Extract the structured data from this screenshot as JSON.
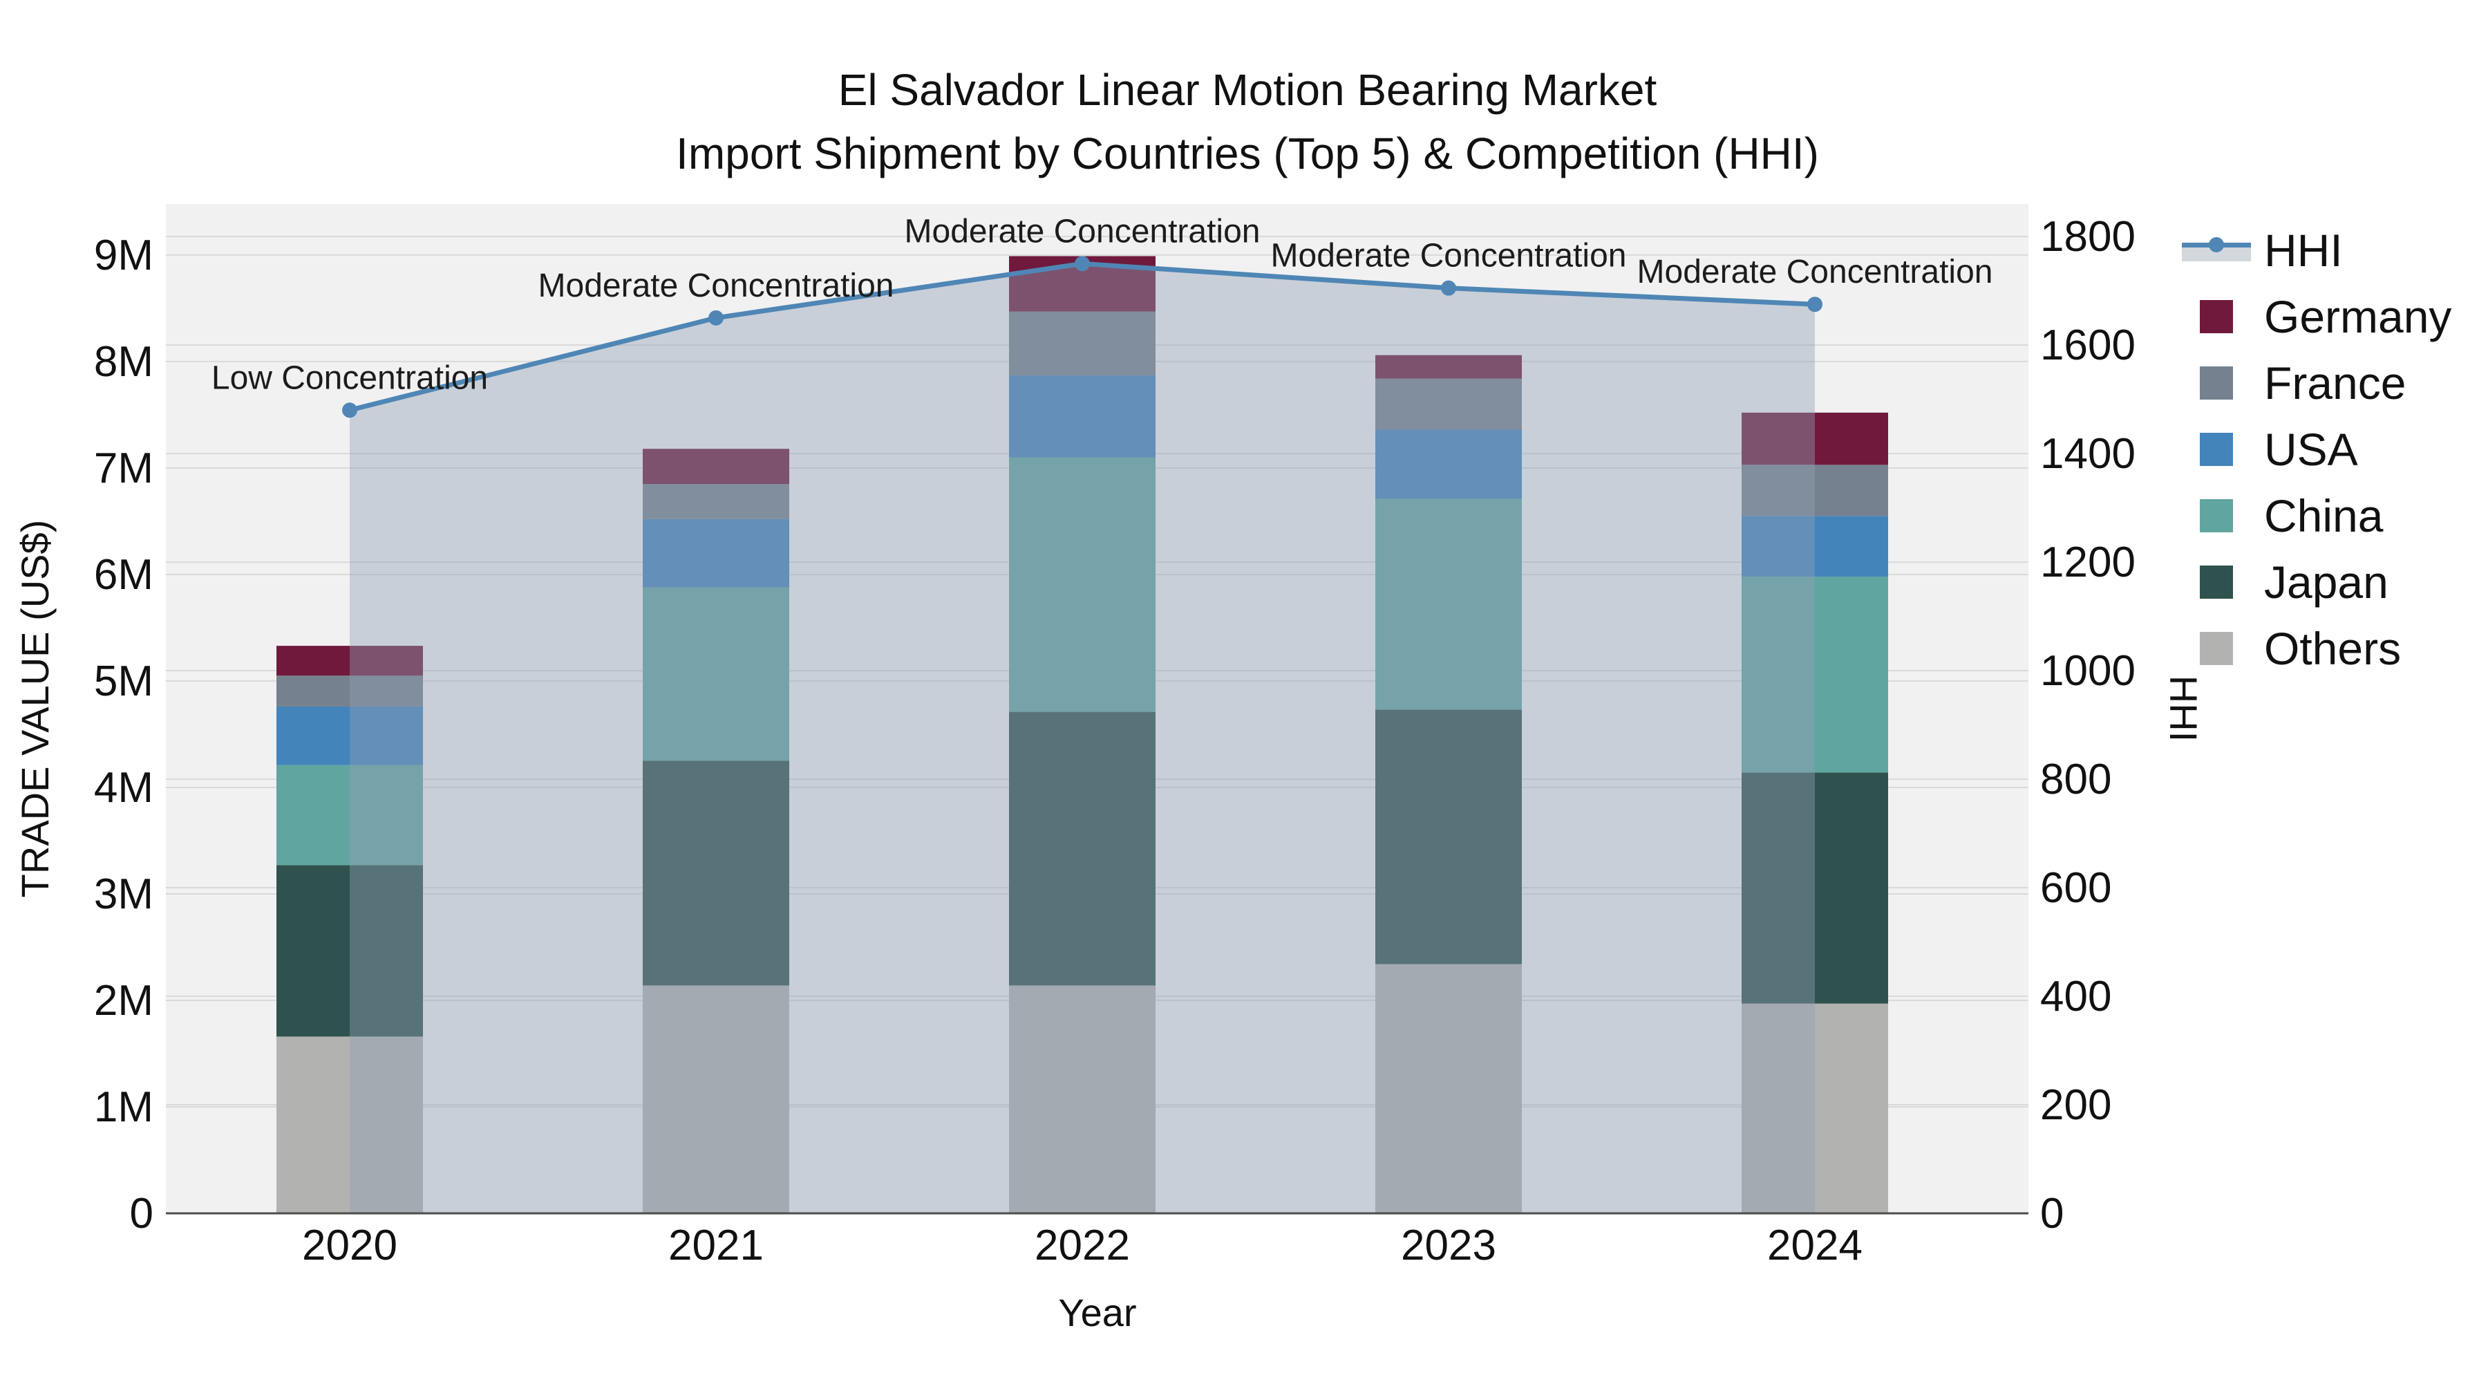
{
  "title": {
    "line1": "El Salvador Linear Motion Bearing Market",
    "line2": "Import Shipment by Countries (Top 5) & Competition (HHI)"
  },
  "chart_data": {
    "type": "bar+line",
    "title": "El Salvador Linear Motion Bearing Market — Import Shipment by Countries (Top 5) & Competition (HHI)",
    "categories": [
      "2020",
      "2021",
      "2022",
      "2023",
      "2024"
    ],
    "xlabel": "Year",
    "left_axis": {
      "label": "TRADE VALUE (US$)",
      "max": 9480000,
      "ticks": [
        {
          "v": 0,
          "label": "0"
        },
        {
          "v": 1000000,
          "label": "1M"
        },
        {
          "v": 2000000,
          "label": "2M"
        },
        {
          "v": 3000000,
          "label": "3M"
        },
        {
          "v": 4000000,
          "label": "4M"
        },
        {
          "v": 5000000,
          "label": "5M"
        },
        {
          "v": 6000000,
          "label": "6M"
        },
        {
          "v": 7000000,
          "label": "7M"
        },
        {
          "v": 8000000,
          "label": "8M"
        },
        {
          "v": 9000000,
          "label": "9M"
        }
      ]
    },
    "right_axis": {
      "label": "HHI",
      "max": 1860,
      "ticks": [
        {
          "v": 0,
          "label": "0"
        },
        {
          "v": 200,
          "label": "200"
        },
        {
          "v": 400,
          "label": "400"
        },
        {
          "v": 600,
          "label": "600"
        },
        {
          "v": 800,
          "label": "800"
        },
        {
          "v": 1000,
          "label": "1000"
        },
        {
          "v": 1200,
          "label": "1200"
        },
        {
          "v": 1400,
          "label": "1400"
        },
        {
          "v": 1600,
          "label": "1600"
        },
        {
          "v": 1800,
          "label": "1800"
        }
      ]
    },
    "series": [
      {
        "name": "Others",
        "color": "#b2b2b0",
        "values": [
          1660000,
          2140000,
          2140000,
          2340000,
          1970000
        ]
      },
      {
        "name": "Japan",
        "color": "#2f524e",
        "values": [
          1610000,
          2110000,
          2570000,
          2390000,
          2170000
        ]
      },
      {
        "name": "China",
        "color": "#61a5a0",
        "values": [
          940000,
          1630000,
          2390000,
          1980000,
          1840000
        ]
      },
      {
        "name": "USA",
        "color": "#4384ba",
        "values": [
          550000,
          640000,
          770000,
          650000,
          570000
        ]
      },
      {
        "name": "France",
        "color": "#75818e",
        "values": [
          290000,
          330000,
          600000,
          480000,
          480000
        ]
      },
      {
        "name": "Germany",
        "color": "#6f1a3c",
        "values": [
          280000,
          330000,
          520000,
          220000,
          490000
        ]
      }
    ],
    "bar_totals": [
      5330000,
      7180000,
      8990000,
      8060000,
      7520000
    ],
    "line": {
      "name": "HHI",
      "color": "#4f86b5",
      "values": [
        1480,
        1650,
        1750,
        1705,
        1675
      ]
    },
    "area_fill_color": "rgba(145,160,180,0.42)",
    "annotations": [
      {
        "year": "2020",
        "text": "Low Concentration"
      },
      {
        "year": "2021",
        "text": "Moderate Concentration"
      },
      {
        "year": "2022",
        "text": "Moderate Concentration"
      },
      {
        "year": "2023",
        "text": "Moderate Concentration"
      },
      {
        "year": "2024",
        "text": "Moderate Concentration"
      }
    ],
    "grid": true,
    "plot_bg": "#f1f1f2",
    "grid_color": "#d9d9d9",
    "legend_position": "right"
  },
  "legend": {
    "items": [
      {
        "label": "HHI",
        "type": "line",
        "color": "#4f86b5",
        "band_color": "#d3d7de"
      },
      {
        "label": "Germany",
        "type": "swatch",
        "color": "#6f1a3c"
      },
      {
        "label": "France",
        "type": "swatch",
        "color": "#75818e"
      },
      {
        "label": "USA",
        "type": "swatch",
        "color": "#4384ba"
      },
      {
        "label": "China",
        "type": "swatch",
        "color": "#61a5a0"
      },
      {
        "label": "Japan",
        "type": "swatch",
        "color": "#2f524e"
      },
      {
        "label": "Others",
        "type": "swatch",
        "color": "#b2b2b0"
      }
    ]
  }
}
